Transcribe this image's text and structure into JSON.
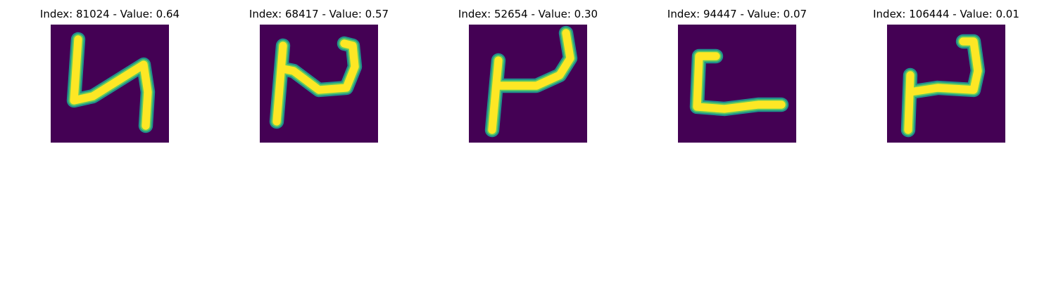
{
  "colors": {
    "background": "#440154",
    "stroke_core": "#fde725",
    "stroke_mid": "#5ec962",
    "stroke_edge": "#21918c"
  },
  "panels": [
    {
      "title": "Index: 81024 - Value: 0.64",
      "image": "digit-5-like"
    },
    {
      "title": "Index: 68417 - Value: 0.57",
      "image": "digit-2-like-reversed"
    },
    {
      "title": "Index: 52654 - Value: 0.30",
      "image": "digit-2-like-reversed"
    },
    {
      "title": "Index: 94447 - Value: 0.07",
      "image": "letter-L-like"
    },
    {
      "title": "Index: 106444 - Value: 0.01",
      "image": "digit-2-like-reversed"
    }
  ]
}
